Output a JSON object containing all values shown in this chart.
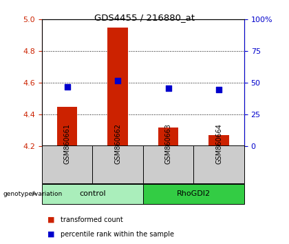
{
  "title": "GDS4455 / 216880_at",
  "samples": [
    "GSM860661",
    "GSM860662",
    "GSM860663",
    "GSM860664"
  ],
  "transformed_counts": [
    4.45,
    4.95,
    4.32,
    4.27
  ],
  "percentile_ranks": [
    47,
    52,
    46,
    45
  ],
  "ylim_left": [
    4.2,
    5.0
  ],
  "ylim_right": [
    0,
    100
  ],
  "yticks_left": [
    4.2,
    4.4,
    4.6,
    4.8,
    5.0
  ],
  "yticks_right": [
    0,
    25,
    50,
    75,
    100
  ],
  "ytick_labels_right": [
    "0",
    "25",
    "50",
    "75",
    "100%"
  ],
  "bar_color": "#cc2200",
  "dot_color": "#0000cc",
  "groups": [
    {
      "label": "control",
      "samples": [
        0,
        1
      ],
      "color": "#aaeebb"
    },
    {
      "label": "RhoGDI2",
      "samples": [
        2,
        3
      ],
      "color": "#33cc44"
    }
  ],
  "group_label": "genotype/variation",
  "legend_bar_label": "transformed count",
  "legend_dot_label": "percentile rank within the sample",
  "plot_bg": "#ffffff",
  "tick_color_left": "#cc2200",
  "tick_color_right": "#0000cc",
  "bar_width": 0.4,
  "sample_bg": "#cccccc",
  "gridline_ticks": [
    4.4,
    4.6,
    4.8
  ]
}
